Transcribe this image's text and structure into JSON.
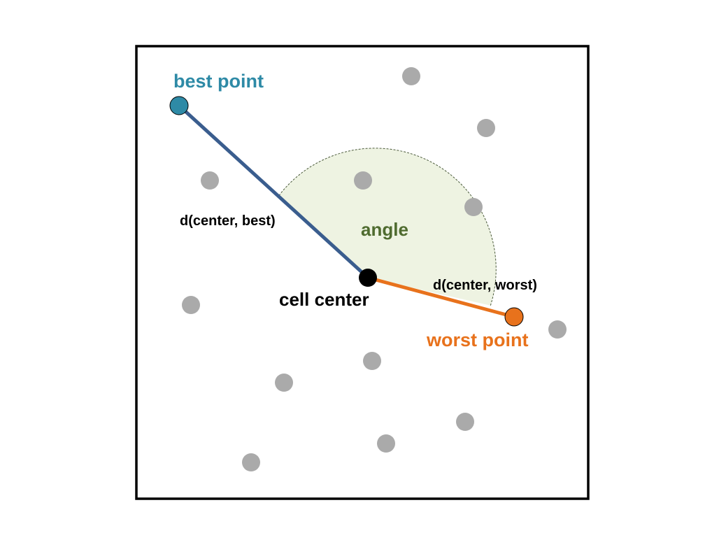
{
  "labels": {
    "best_point": "best point",
    "worst_point": "worst point",
    "cell_center": "cell center",
    "angle": "angle",
    "d_center_best": "d(center, best)",
    "d_center_worst": "d(center, worst)"
  },
  "colors": {
    "best": "#2e8aa6",
    "best_line": "#3a5d8e",
    "worst": "#e8721c",
    "center": "#000000",
    "gray_point": "#aaaaaa",
    "angle_fill": "#eef3e2",
    "angle_label": "#4f6b2f",
    "border": "#000000"
  }
}
